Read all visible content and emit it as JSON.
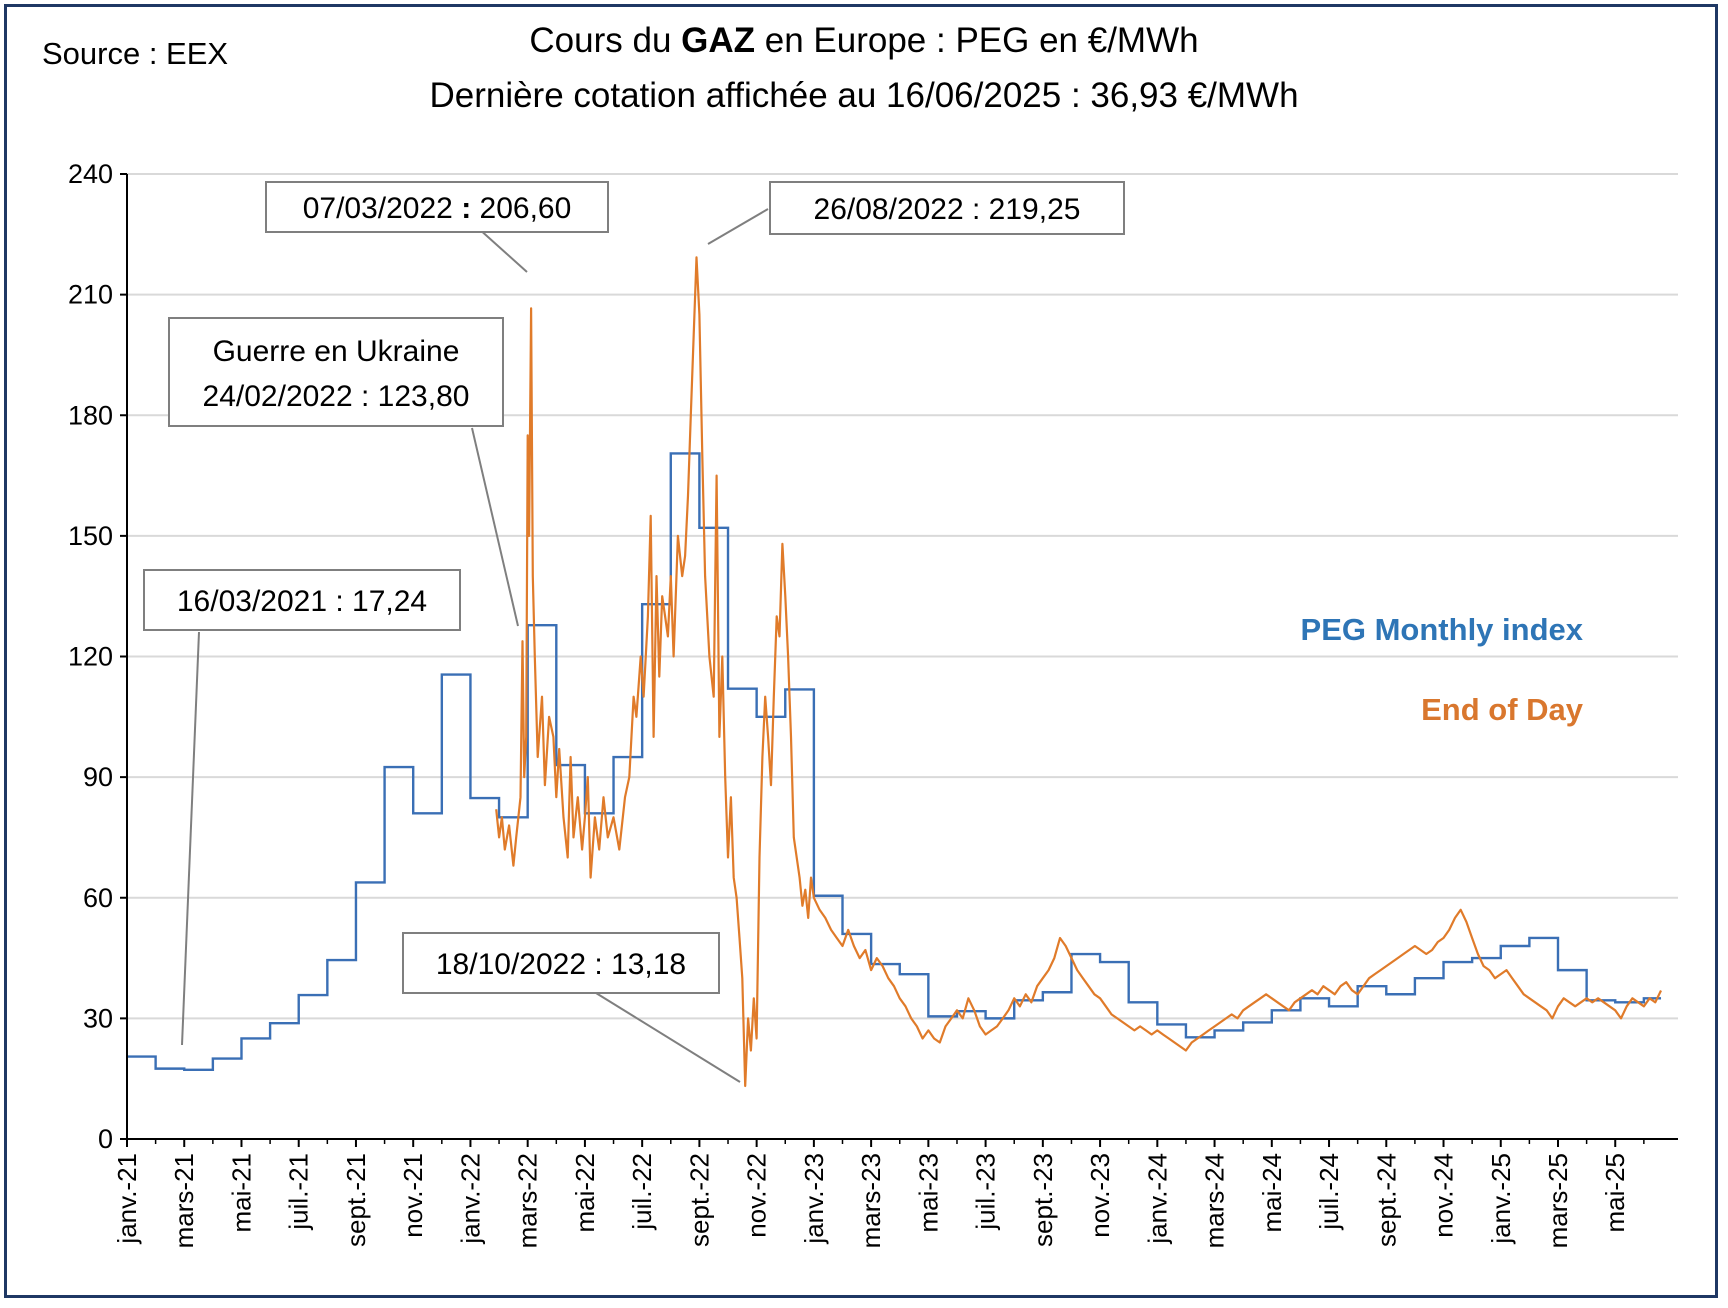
{
  "source_label": "Source : EEX",
  "title": {
    "line1_prefix": "Cours du ",
    "line1_bold": "GAZ",
    "line1_suffix": " en Europe : PEG en €/MWh",
    "line2": "Dernière cotation affichée au 16/06/2025 : 36,93 €/MWh"
  },
  "colors": {
    "monthly": "#3a6fb5",
    "daily": "#e07b2a",
    "grid": "#d9d9d9",
    "frame": "#1f3864",
    "leader": "#7f7f7f"
  },
  "chart_data": {
    "type": "line",
    "title": "Cours du GAZ en Europe : PEG en €/MWh",
    "ylabel": "€/MWh",
    "ylim": [
      0,
      240
    ],
    "yticks": [
      "0",
      "30",
      "60",
      "90",
      "120",
      "150",
      "180",
      "210",
      "240"
    ],
    "x_range_months": [
      0,
      53.6
    ],
    "xticks": [
      {
        "label": "janv.-21",
        "m": 0
      },
      {
        "label": "mars-21",
        "m": 2
      },
      {
        "label": "mai-21",
        "m": 4
      },
      {
        "label": "juil.-21",
        "m": 6
      },
      {
        "label": "sept.-21",
        "m": 8
      },
      {
        "label": "nov.-21",
        "m": 10
      },
      {
        "label": "janv.-22",
        "m": 12
      },
      {
        "label": "mars-22",
        "m": 14
      },
      {
        "label": "mai-22",
        "m": 16
      },
      {
        "label": "juil.-22",
        "m": 18
      },
      {
        "label": "sept.-22",
        "m": 20
      },
      {
        "label": "nov.-22",
        "m": 22
      },
      {
        "label": "janv.-23",
        "m": 24
      },
      {
        "label": "mars-23",
        "m": 26
      },
      {
        "label": "mai-23",
        "m": 28
      },
      {
        "label": "juil.-23",
        "m": 30
      },
      {
        "label": "sept.-23",
        "m": 32
      },
      {
        "label": "nov.-23",
        "m": 34
      },
      {
        "label": "janv.-24",
        "m": 36
      },
      {
        "label": "mars-24",
        "m": 38
      },
      {
        "label": "mai-24",
        "m": 40
      },
      {
        "label": "juil.-24",
        "m": 42
      },
      {
        "label": "sept.-24",
        "m": 44
      },
      {
        "label": "nov.-24",
        "m": 46
      },
      {
        "label": "janv.-25",
        "m": 48
      },
      {
        "label": "mars-25",
        "m": 50
      },
      {
        "label": "mai-25",
        "m": 52
      }
    ],
    "series": [
      {
        "name": "PEG Monthly index",
        "kind": "step",
        "values": [
          20.5,
          17.5,
          17.2,
          20.0,
          25.0,
          28.8,
          35.8,
          44.5,
          63.8,
          92.5,
          81.0,
          115.5,
          84.8,
          80.0,
          127.8,
          93.0,
          81.0,
          95.0,
          133.0,
          170.5,
          152.0,
          112.0,
          105.0,
          111.8,
          60.5,
          51.0,
          43.5,
          41.0,
          30.5,
          31.8,
          30.0,
          34.5,
          36.5,
          46.0,
          44.0,
          34.0,
          28.5,
          25.3,
          27.0,
          29.0,
          32.0,
          35.0,
          33.0,
          38.0,
          36.0,
          40.0,
          44.0,
          45.0,
          48.0,
          50.0,
          42.0,
          34.5,
          34.0,
          35.0
        ]
      },
      {
        "name": "End of Day",
        "kind": "line",
        "points": [
          [
            12.9,
            82
          ],
          [
            13.0,
            75
          ],
          [
            13.1,
            80
          ],
          [
            13.2,
            72
          ],
          [
            13.35,
            78
          ],
          [
            13.5,
            68
          ],
          [
            13.6,
            75
          ],
          [
            13.75,
            85
          ],
          [
            13.82,
            123.8
          ],
          [
            13.88,
            90
          ],
          [
            13.95,
            100
          ],
          [
            14.0,
            175
          ],
          [
            14.05,
            150
          ],
          [
            14.12,
            206.6
          ],
          [
            14.18,
            140
          ],
          [
            14.25,
            120
          ],
          [
            14.35,
            95
          ],
          [
            14.5,
            110
          ],
          [
            14.6,
            88
          ],
          [
            14.75,
            105
          ],
          [
            14.9,
            100
          ],
          [
            15.0,
            85
          ],
          [
            15.1,
            97
          ],
          [
            15.25,
            80
          ],
          [
            15.4,
            70
          ],
          [
            15.5,
            95
          ],
          [
            15.6,
            75
          ],
          [
            15.75,
            85
          ],
          [
            15.9,
            72
          ],
          [
            16.0,
            80
          ],
          [
            16.1,
            90
          ],
          [
            16.2,
            65
          ],
          [
            16.35,
            80
          ],
          [
            16.5,
            72
          ],
          [
            16.65,
            85
          ],
          [
            16.8,
            75
          ],
          [
            17.0,
            80
          ],
          [
            17.2,
            72
          ],
          [
            17.4,
            85
          ],
          [
            17.55,
            90
          ],
          [
            17.7,
            110
          ],
          [
            17.8,
            105
          ],
          [
            17.95,
            120
          ],
          [
            18.05,
            110
          ],
          [
            18.2,
            130
          ],
          [
            18.3,
            155
          ],
          [
            18.4,
            100
          ],
          [
            18.5,
            140
          ],
          [
            18.6,
            115
          ],
          [
            18.7,
            135
          ],
          [
            18.8,
            130
          ],
          [
            18.9,
            125
          ],
          [
            19.0,
            140
          ],
          [
            19.1,
            120
          ],
          [
            19.25,
            150
          ],
          [
            19.4,
            140
          ],
          [
            19.5,
            145
          ],
          [
            19.6,
            160
          ],
          [
            19.7,
            180
          ],
          [
            19.8,
            200
          ],
          [
            19.9,
            219.25
          ],
          [
            20.0,
            205
          ],
          [
            20.1,
            170
          ],
          [
            20.2,
            140
          ],
          [
            20.35,
            120
          ],
          [
            20.5,
            110
          ],
          [
            20.6,
            165
          ],
          [
            20.7,
            100
          ],
          [
            20.8,
            120
          ],
          [
            20.9,
            90
          ],
          [
            21.0,
            70
          ],
          [
            21.1,
            85
          ],
          [
            21.2,
            65
          ],
          [
            21.3,
            60
          ],
          [
            21.4,
            50
          ],
          [
            21.5,
            40
          ],
          [
            21.6,
            13.18
          ],
          [
            21.7,
            30
          ],
          [
            21.8,
            22
          ],
          [
            21.9,
            35
          ],
          [
            22.0,
            25
          ],
          [
            22.1,
            70
          ],
          [
            22.2,
            95
          ],
          [
            22.3,
            110
          ],
          [
            22.4,
            100
          ],
          [
            22.5,
            88
          ],
          [
            22.6,
            110
          ],
          [
            22.7,
            130
          ],
          [
            22.8,
            125
          ],
          [
            22.9,
            148
          ],
          [
            23.0,
            135
          ],
          [
            23.1,
            120
          ],
          [
            23.2,
            100
          ],
          [
            23.3,
            75
          ],
          [
            23.4,
            70
          ],
          [
            23.5,
            65
          ],
          [
            23.6,
            58
          ],
          [
            23.7,
            62
          ],
          [
            23.8,
            55
          ],
          [
            23.9,
            65
          ],
          [
            24.0,
            60
          ],
          [
            24.2,
            57
          ],
          [
            24.4,
            55
          ],
          [
            24.6,
            52
          ],
          [
            24.8,
            50
          ],
          [
            25.0,
            48
          ],
          [
            25.2,
            52
          ],
          [
            25.4,
            48
          ],
          [
            25.6,
            45
          ],
          [
            25.8,
            47
          ],
          [
            26.0,
            42
          ],
          [
            26.2,
            45
          ],
          [
            26.4,
            43
          ],
          [
            26.6,
            40
          ],
          [
            26.8,
            38
          ],
          [
            27.0,
            35
          ],
          [
            27.2,
            33
          ],
          [
            27.4,
            30
          ],
          [
            27.6,
            28
          ],
          [
            27.8,
            25
          ],
          [
            28.0,
            27
          ],
          [
            28.2,
            25
          ],
          [
            28.4,
            24
          ],
          [
            28.6,
            28
          ],
          [
            28.8,
            30
          ],
          [
            29.0,
            32
          ],
          [
            29.2,
            30
          ],
          [
            29.4,
            35
          ],
          [
            29.6,
            32
          ],
          [
            29.8,
            28
          ],
          [
            30.0,
            26
          ],
          [
            30.2,
            27
          ],
          [
            30.4,
            28
          ],
          [
            30.6,
            30
          ],
          [
            30.8,
            32
          ],
          [
            31.0,
            35
          ],
          [
            31.2,
            33
          ],
          [
            31.4,
            36
          ],
          [
            31.6,
            34
          ],
          [
            31.8,
            38
          ],
          [
            32.0,
            40
          ],
          [
            32.2,
            42
          ],
          [
            32.4,
            45
          ],
          [
            32.6,
            50
          ],
          [
            32.8,
            48
          ],
          [
            33.0,
            45
          ],
          [
            33.2,
            42
          ],
          [
            33.4,
            40
          ],
          [
            33.6,
            38
          ],
          [
            33.8,
            36
          ],
          [
            34.0,
            35
          ],
          [
            34.2,
            33
          ],
          [
            34.4,
            31
          ],
          [
            34.6,
            30
          ],
          [
            34.8,
            29
          ],
          [
            35.0,
            28
          ],
          [
            35.2,
            27
          ],
          [
            35.4,
            28
          ],
          [
            35.6,
            27
          ],
          [
            35.8,
            26
          ],
          [
            36.0,
            27
          ],
          [
            36.2,
            26
          ],
          [
            36.4,
            25
          ],
          [
            36.6,
            24
          ],
          [
            36.8,
            23
          ],
          [
            37.0,
            22
          ],
          [
            37.2,
            24
          ],
          [
            37.4,
            25
          ],
          [
            37.6,
            26
          ],
          [
            37.8,
            27
          ],
          [
            38.0,
            28
          ],
          [
            38.2,
            29
          ],
          [
            38.4,
            30
          ],
          [
            38.6,
            31
          ],
          [
            38.8,
            30
          ],
          [
            39.0,
            32
          ],
          [
            39.2,
            33
          ],
          [
            39.4,
            34
          ],
          [
            39.6,
            35
          ],
          [
            39.8,
            36
          ],
          [
            40.0,
            35
          ],
          [
            40.2,
            34
          ],
          [
            40.4,
            33
          ],
          [
            40.6,
            32
          ],
          [
            40.8,
            34
          ],
          [
            41.0,
            35
          ],
          [
            41.2,
            36
          ],
          [
            41.4,
            37
          ],
          [
            41.6,
            36
          ],
          [
            41.8,
            38
          ],
          [
            42.0,
            37
          ],
          [
            42.2,
            36
          ],
          [
            42.4,
            38
          ],
          [
            42.6,
            39
          ],
          [
            42.8,
            37
          ],
          [
            43.0,
            36
          ],
          [
            43.2,
            38
          ],
          [
            43.4,
            40
          ],
          [
            43.6,
            41
          ],
          [
            43.8,
            42
          ],
          [
            44.0,
            43
          ],
          [
            44.2,
            44
          ],
          [
            44.4,
            45
          ],
          [
            44.6,
            46
          ],
          [
            44.8,
            47
          ],
          [
            45.0,
            48
          ],
          [
            45.2,
            47
          ],
          [
            45.4,
            46
          ],
          [
            45.6,
            47
          ],
          [
            45.8,
            49
          ],
          [
            46.0,
            50
          ],
          [
            46.2,
            52
          ],
          [
            46.4,
            55
          ],
          [
            46.6,
            57
          ],
          [
            46.8,
            54
          ],
          [
            47.0,
            50
          ],
          [
            47.2,
            46
          ],
          [
            47.4,
            43
          ],
          [
            47.6,
            42
          ],
          [
            47.8,
            40
          ],
          [
            48.0,
            41
          ],
          [
            48.2,
            42
          ],
          [
            48.4,
            40
          ],
          [
            48.6,
            38
          ],
          [
            48.8,
            36
          ],
          [
            49.0,
            35
          ],
          [
            49.2,
            34
          ],
          [
            49.4,
            33
          ],
          [
            49.6,
            32
          ],
          [
            49.8,
            30
          ],
          [
            50.0,
            33
          ],
          [
            50.2,
            35
          ],
          [
            50.4,
            34
          ],
          [
            50.6,
            33
          ],
          [
            50.8,
            34
          ],
          [
            51.0,
            35
          ],
          [
            51.2,
            34
          ],
          [
            51.4,
            35
          ],
          [
            51.6,
            34
          ],
          [
            51.8,
            33
          ],
          [
            52.0,
            32
          ],
          [
            52.2,
            30
          ],
          [
            52.4,
            33
          ],
          [
            52.6,
            35
          ],
          [
            52.8,
            34
          ],
          [
            53.0,
            33
          ],
          [
            53.2,
            35
          ],
          [
            53.4,
            34
          ],
          [
            53.6,
            36.93
          ]
        ]
      }
    ],
    "legend": [
      "PEG Monthly index",
      "End of Day"
    ],
    "legend_position": "right"
  },
  "annotations": [
    {
      "id": "guerre",
      "line1": "Guerre en Ukraine",
      "line2": "24/02/2022 : 123,80"
    },
    {
      "id": "mar2022",
      "date": "07/03/2022",
      "sep": " : ",
      "value": "206,60"
    },
    {
      "id": "aug2022",
      "text": "26/08/2022 : 219,25"
    },
    {
      "id": "mar2021",
      "text": "16/03/2021 : 17,24"
    },
    {
      "id": "oct2022",
      "text": "18/10/2022 : 13,18"
    }
  ]
}
